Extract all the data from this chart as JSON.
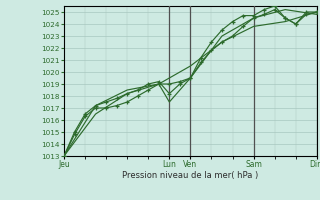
{
  "bg_color": "#ceeae2",
  "grid_color": "#a8c8c0",
  "line_color": "#2d6b2d",
  "xlabel": "Pression niveau de la mer( hPa )",
  "ylim": [
    1013,
    1025.5
  ],
  "yticks": [
    1013,
    1014,
    1015,
    1016,
    1017,
    1018,
    1019,
    1020,
    1021,
    1022,
    1023,
    1024,
    1025
  ],
  "xlim": [
    0,
    96
  ],
  "xtick_labels": [
    "Jeu",
    "Lun",
    "Ven",
    "Sam",
    "Dim"
  ],
  "xtick_positions": [
    0,
    40,
    48,
    72,
    96
  ],
  "vline_positions": [
    40,
    48,
    72,
    96
  ],
  "series1_x": [
    0,
    4,
    8,
    12,
    16,
    20,
    24,
    28,
    32,
    36,
    40,
    44,
    48,
    52,
    56,
    60,
    64,
    68,
    72,
    76,
    80,
    84,
    88,
    92,
    96
  ],
  "series1_y": [
    1013.0,
    1014.8,
    1016.3,
    1017.0,
    1017.0,
    1017.2,
    1017.5,
    1018.0,
    1018.5,
    1019.0,
    1019.0,
    1019.2,
    1019.5,
    1020.8,
    1021.8,
    1022.5,
    1023.0,
    1023.8,
    1024.5,
    1024.8,
    1025.2,
    1024.5,
    1024.0,
    1024.8,
    1025.0
  ],
  "series2_x": [
    0,
    4,
    8,
    12,
    16,
    20,
    24,
    28,
    32,
    36,
    40,
    44,
    48,
    52,
    56,
    60,
    64,
    68,
    72,
    76,
    80,
    84,
    88,
    92,
    96
  ],
  "series2_y": [
    1013.0,
    1015.0,
    1016.5,
    1017.2,
    1017.5,
    1017.8,
    1018.2,
    1018.5,
    1019.0,
    1019.2,
    1018.2,
    1019.0,
    1019.5,
    1021.2,
    1022.5,
    1023.5,
    1024.2,
    1024.7,
    1024.7,
    1025.2,
    1025.5,
    1024.5,
    1024.0,
    1025.0,
    1025.0
  ],
  "series3_x": [
    0,
    12,
    24,
    36,
    48,
    60,
    72,
    84,
    96
  ],
  "series3_y": [
    1013.0,
    1016.5,
    1018.2,
    1019.0,
    1020.5,
    1022.5,
    1023.8,
    1024.2,
    1025.0
  ],
  "series4_x": [
    0,
    12,
    24,
    36,
    40,
    48,
    60,
    72,
    84,
    96
  ],
  "series4_y": [
    1013.0,
    1017.2,
    1018.5,
    1019.0,
    1017.5,
    1019.5,
    1023.0,
    1024.5,
    1025.2,
    1024.8
  ]
}
